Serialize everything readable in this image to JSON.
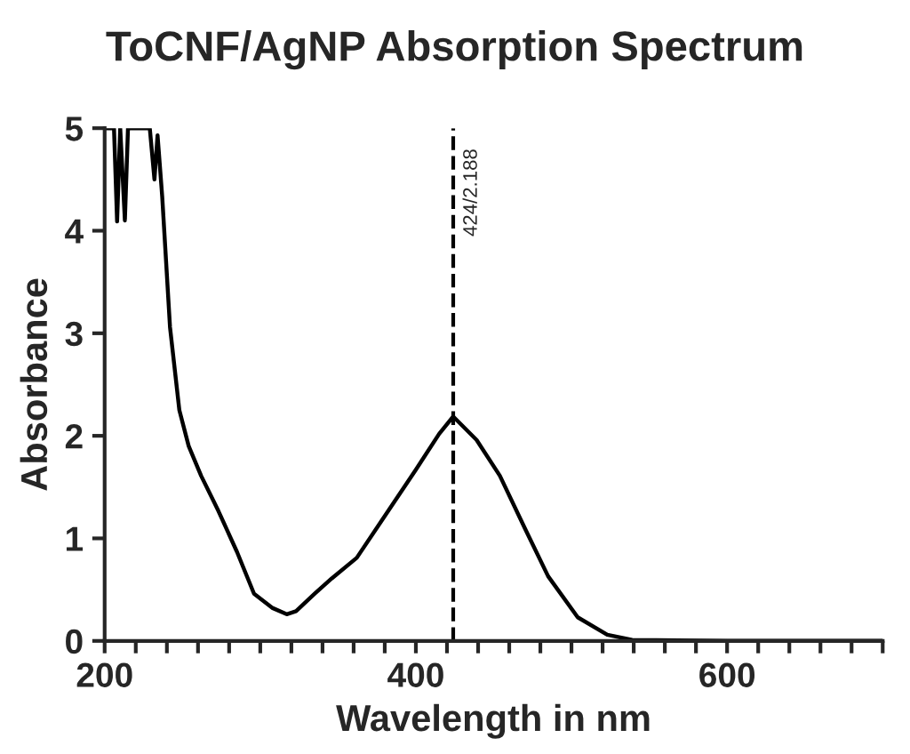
{
  "chart_data": {
    "type": "line",
    "title": "ToCNF/AgNP Absorption Spectrum",
    "xlabel": "Wavelength in nm",
    "ylabel": "Absorbance",
    "x": [
      201,
      206,
      208,
      210,
      213,
      215,
      229,
      232,
      234,
      237,
      242,
      248,
      254,
      262,
      273,
      285,
      296,
      308,
      317,
      323,
      335,
      346,
      362,
      377,
      400,
      415,
      424,
      439,
      454,
      470,
      485,
      504,
      523,
      539,
      600,
      700
    ],
    "series": [
      {
        "color": "#000000",
        "values": [
          5.0,
          5.0,
          4.09,
          5.0,
          4.1,
          5.0,
          5.0,
          4.5,
          4.93,
          4.33,
          3.06,
          2.25,
          1.9,
          1.61,
          1.27,
          0.87,
          0.46,
          0.32,
          0.26,
          0.29,
          0.46,
          0.61,
          0.81,
          1.15,
          1.67,
          2.02,
          2.188,
          1.96,
          1.61,
          1.1,
          0.63,
          0.23,
          0.06,
          0.01,
          0.0,
          0.0
        ]
      }
    ],
    "xlim": [
      200,
      700
    ],
    "ylim": [
      0,
      5
    ],
    "xticks": [
      200,
      {
        "value": 220,
        "label": null
      },
      {
        "value": 240,
        "label": null
      },
      {
        "value": 260,
        "label": null
      },
      {
        "value": 280,
        "label": null
      },
      {
        "value": 300,
        "label": null
      },
      {
        "value": 320,
        "label": null
      },
      {
        "value": 340,
        "label": null
      },
      {
        "value": 360,
        "label": null
      },
      {
        "value": 380,
        "label": null
      },
      400,
      {
        "value": 420,
        "label": null
      },
      {
        "value": 440,
        "label": null
      },
      {
        "value": 460,
        "label": null
      },
      {
        "value": 480,
        "label": null
      },
      {
        "value": 500,
        "label": null
      },
      {
        "value": 520,
        "label": null
      },
      {
        "value": 540,
        "label": null
      },
      {
        "value": 560,
        "label": null
      },
      {
        "value": 580,
        "label": null
      },
      600,
      {
        "value": 620,
        "label": null
      },
      {
        "value": 640,
        "label": null
      },
      {
        "value": 660,
        "label": null
      },
      {
        "value": 680,
        "label": null
      },
      {
        "value": 700,
        "label": null
      }
    ],
    "yticks": [
      0,
      1,
      2,
      3,
      4,
      5
    ],
    "ref_lines": [
      {
        "axis": "x",
        "value": 424,
        "label": "424/2.188",
        "line_style": "dashed"
      }
    ],
    "grid": false,
    "legend": false,
    "marker": "none",
    "line_style": "solid"
  }
}
